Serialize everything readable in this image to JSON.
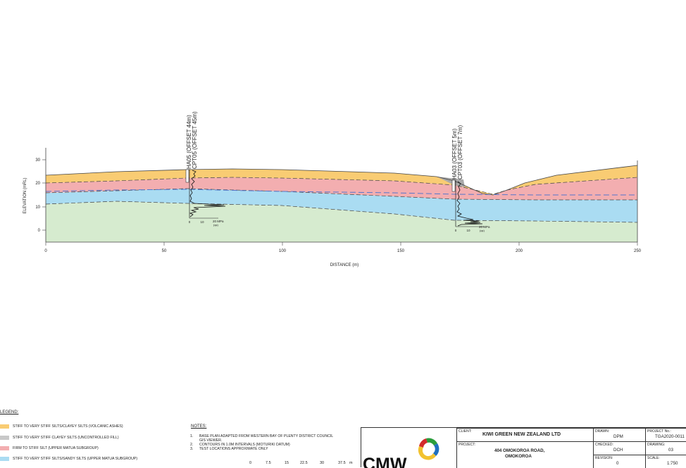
{
  "section": {
    "y_axis_label": "ELEVATION (mRL)",
    "x_axis_label": "DISTANCE (m)",
    "y_ticks": [
      "30",
      "20",
      "10",
      "0"
    ],
    "x_ticks": [
      "0",
      "50",
      "100",
      "150",
      "200",
      "250"
    ],
    "boreholes": [
      {
        "line1": "HA05 (OFFSET 44m)",
        "line2": "CPT05 (OFFSET 45m)",
        "cpt_scale": [
          "0",
          "10",
          "20 MPa"
        ],
        "cpt_unit": "(qc)"
      },
      {
        "line1": "HA03 (OFFSET 5m)",
        "line2": "CPT03 (OFFSET 7m)",
        "cpt_scale": [
          "0",
          "10",
          "20 MPa"
        ],
        "cpt_unit": "(qc)"
      }
    ]
  },
  "legend": {
    "title": "LEGEND:",
    "items": [
      {
        "label": "STIFF TO VERY STIFF SILTS/CLAYEY SILTS (VOLCANIC ASHES)",
        "color": "#f9cc73"
      },
      {
        "label": "STIFF TO VERY STIFF CLAYEY SILTS (UNCONTROLLED FILL)",
        "color": "#c8c8c8"
      },
      {
        "label": "FIRM TO STIFF SILT (UPPER MATUA SUBGROUP)",
        "color": "#f3aeb0"
      },
      {
        "label": "STIFF TO VERY STIFF SILTS/SANDY SILTS (UPPER MATUA SUBGROUP)",
        "color": "#aadcf2"
      }
    ]
  },
  "notes": {
    "title": "NOTES:",
    "items": [
      {
        "num": "1.",
        "text": "BASE PLAN ADAPTED FROM WESTERN BAY OF PLENTY DISTRICT COUNCIL",
        "text2": "GIS VIEWER."
      },
      {
        "num": "2.",
        "text": "CONTOURS IN 1.0M INTERVALS (MOTURIKI DATUM)",
        "text2": ""
      },
      {
        "num": "3.",
        "text": "TEST LOCATIONS APPROXIMATE ONLY",
        "text2": ""
      }
    ]
  },
  "scalebar": [
    "0",
    "7.5",
    "15",
    "22.5",
    "30",
    "37.5",
    "m"
  ],
  "titleblock": {
    "logo": "CMW",
    "client_cap": "CLIENT:",
    "client": "KIWI GREEN NEW ZEALAND LTD",
    "project_cap": "PROJECT:",
    "project1": "404 OMOKOROA ROAD,",
    "project2": "OMOKOROA",
    "drawn_cap": "DRAWN:",
    "drawn": "DPM",
    "checked_cap": "CHECKED:",
    "checked": "DCH",
    "revision_cap": "REVISION:",
    "revision": "0",
    "projno_cap": "PROJECT No.:",
    "projno": "TGA2020-0011",
    "drawing_cap": "DRAWING:",
    "drawing": "03",
    "scale_cap": "SCALE:",
    "scale": "1:750"
  },
  "colors": {
    "volcanic": "#f9cc73",
    "fill": "#c8c8c8",
    "firm": "#f3aeb0",
    "stiff": "#aadcf2",
    "base": "#d6ebcf",
    "water": "#5577cc"
  }
}
